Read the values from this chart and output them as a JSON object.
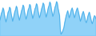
{
  "values": [
    45,
    55,
    65,
    70,
    80,
    75,
    60,
    50,
    40,
    48,
    58,
    68,
    72,
    82,
    78,
    63,
    52,
    42,
    50,
    60,
    70,
    75,
    85,
    80,
    65,
    55,
    45,
    52,
    62,
    72,
    78,
    88,
    84,
    68,
    58,
    48,
    55,
    65,
    75,
    80,
    90,
    86,
    70,
    60,
    50,
    57,
    67,
    77,
    82,
    92,
    88,
    73,
    62,
    52,
    58,
    68,
    78,
    84,
    94,
    90,
    75,
    64,
    54,
    61,
    71,
    81,
    87,
    97,
    92,
    77,
    66,
    56,
    62,
    72,
    82,
    88,
    98,
    94,
    79,
    68,
    58,
    18,
    5,
    8,
    12,
    18,
    25,
    38,
    48,
    58,
    65,
    72,
    62,
    52,
    58,
    68,
    75,
    80,
    72,
    62,
    52,
    58,
    68,
    75,
    80,
    72,
    62,
    52,
    42,
    48,
    58,
    65,
    70,
    62,
    52,
    42,
    38,
    45,
    55,
    62,
    68,
    60,
    50,
    40,
    35,
    42,
    52,
    58,
    55,
    48
  ],
  "line_color": "#4aaee8",
  "fill_color": "#7dcbf7",
  "fill_alpha": 0.85,
  "background_color": "#ffffff",
  "linewidth": 0.6,
  "figsize": [
    1.2,
    0.45
  ],
  "dpi": 100
}
